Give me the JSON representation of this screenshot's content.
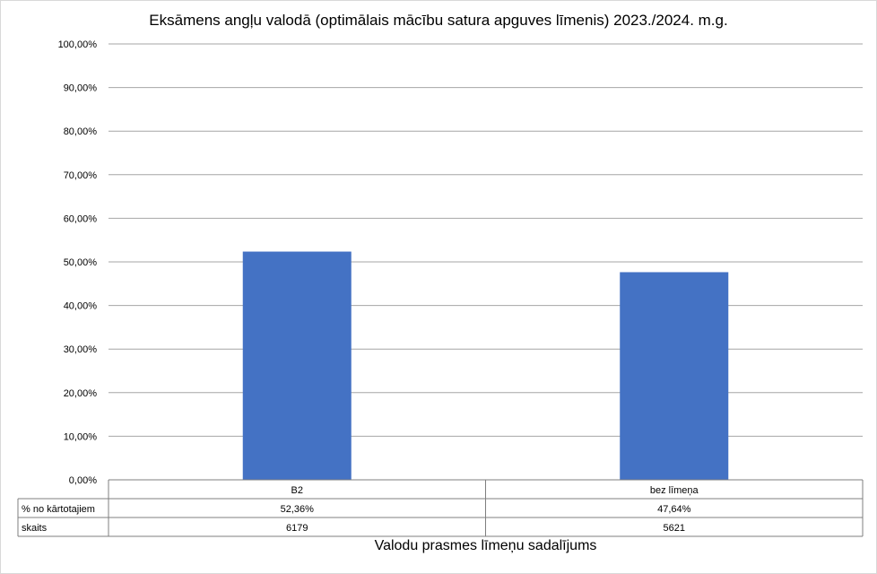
{
  "chart_data": {
    "type": "bar",
    "title": "Eksāmens angļu valodā (optimālais mācību satura apguves līmenis) 2023./2024. m.g.",
    "xlabel": "Valodu prasmes līmeņu sadalījums",
    "ylabel": "",
    "categories": [
      "B2",
      "bez līmeņa"
    ],
    "series": [
      {
        "name": "% no kārtotajiem",
        "values": [
          52.36,
          47.64
        ],
        "color": "#4472c4"
      }
    ],
    "ylim": [
      0,
      100
    ],
    "yticks": [
      "0,00%",
      "10,00%",
      "20,00%",
      "30,00%",
      "40,00%",
      "50,00%",
      "60,00%",
      "70,00%",
      "80,00%",
      "90,00%",
      "100,00%"
    ],
    "grid": true,
    "legend": "none",
    "data_table": {
      "rows": [
        {
          "label": "% no kārtotajiem",
          "values": [
            "52,36%",
            "47,64%"
          ]
        },
        {
          "label": "skaits",
          "values": [
            "6179",
            "5621"
          ]
        }
      ]
    }
  }
}
